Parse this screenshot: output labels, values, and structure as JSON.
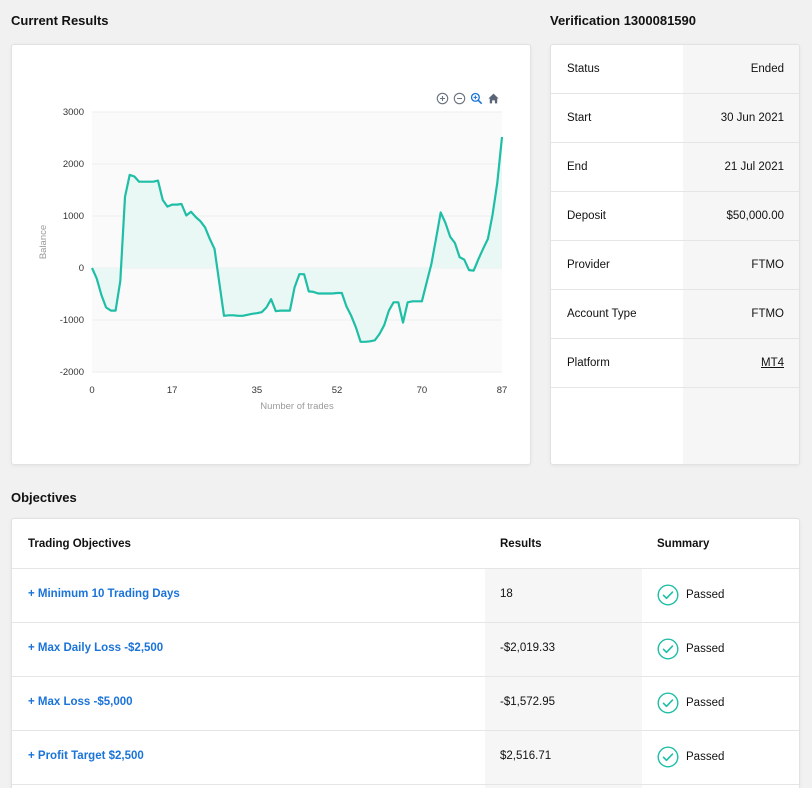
{
  "sections": {
    "current_results": "Current Results",
    "verification": "Verification 1300081590",
    "objectives": "Objectives"
  },
  "chart_data": {
    "type": "area",
    "title": "",
    "xlabel": "Number of trades",
    "ylabel": "Balance",
    "xlim": [
      0,
      87
    ],
    "ylim": [
      -2000,
      3000
    ],
    "x_ticks": [
      "0",
      "17",
      "35",
      "52",
      "70",
      "87"
    ],
    "y_ticks": [
      "3000",
      "2000",
      "1000",
      "0",
      "-1000",
      "-2000"
    ],
    "grid": true,
    "line_color": "#1fbea6",
    "fill_color": "#e8f7f4",
    "x": [
      0,
      1,
      2,
      3,
      4,
      5,
      6,
      7,
      8,
      9,
      10,
      11,
      12,
      13,
      14,
      15,
      16,
      17,
      18,
      19,
      20,
      21,
      22,
      23,
      24,
      25,
      26,
      27,
      28,
      29,
      30,
      31,
      32,
      33,
      34,
      35,
      36,
      37,
      38,
      39,
      40,
      41,
      42,
      43,
      44,
      45,
      46,
      47,
      48,
      49,
      50,
      51,
      52,
      53,
      54,
      55,
      56,
      57,
      58,
      59,
      60,
      61,
      62,
      63,
      64,
      65,
      66,
      67,
      68,
      69,
      70,
      71,
      72,
      73,
      74,
      75,
      76,
      77,
      78,
      79,
      80,
      81,
      82,
      83,
      84,
      85,
      86,
      87
    ],
    "y": [
      0,
      -200,
      -520,
      -760,
      -820,
      -820,
      -250,
      1370,
      1790,
      1760,
      1660,
      1660,
      1660,
      1660,
      1680,
      1310,
      1180,
      1220,
      1220,
      1230,
      1010,
      1080,
      980,
      900,
      780,
      560,
      370,
      -270,
      -920,
      -910,
      -910,
      -920,
      -920,
      -900,
      -880,
      -870,
      -850,
      -760,
      -600,
      -830,
      -820,
      -820,
      -820,
      -370,
      -120,
      -120,
      -450,
      -460,
      -490,
      -490,
      -490,
      -490,
      -480,
      -480,
      -740,
      -920,
      -1140,
      -1420,
      -1420,
      -1410,
      -1390,
      -1270,
      -1100,
      -820,
      -660,
      -660,
      -1050,
      -660,
      -640,
      -640,
      -640,
      -280,
      70,
      560,
      1070,
      870,
      600,
      480,
      210,
      160,
      -40,
      -50,
      170,
      370,
      560,
      1030,
      1640,
      2520
    ]
  },
  "toolbar": {
    "icons": [
      "zoom-in-icon",
      "zoom-out-icon",
      "magnifier-icon",
      "home-icon"
    ]
  },
  "verification": {
    "rows": [
      {
        "label": "Status",
        "value": "Ended"
      },
      {
        "label": "Start",
        "value": "30 Jun 2021"
      },
      {
        "label": "End",
        "value": "21 Jul 2021"
      },
      {
        "label": "Deposit",
        "value": "$50,000.00"
      },
      {
        "label": "Provider",
        "value": "FTMO"
      },
      {
        "label": "Account Type",
        "value": "FTMO"
      },
      {
        "label": "Platform",
        "value": "MT4"
      }
    ]
  },
  "objectives": {
    "headers": {
      "objective": "Trading Objectives",
      "results": "Results",
      "summary": "Summary"
    },
    "rows": [
      {
        "name": "+ Minimum 10 Trading Days",
        "result": "18",
        "summary": "Passed"
      },
      {
        "name": "+ Max Daily Loss -$2,500",
        "result": "-$2,019.33",
        "summary": "Passed"
      },
      {
        "name": "+ Max Loss -$5,000",
        "result": "-$1,572.95",
        "summary": "Passed"
      },
      {
        "name": "+ Profit Target $2,500",
        "result": "$2,516.71",
        "summary": "Passed"
      }
    ],
    "check_color": "#1fbea6"
  }
}
